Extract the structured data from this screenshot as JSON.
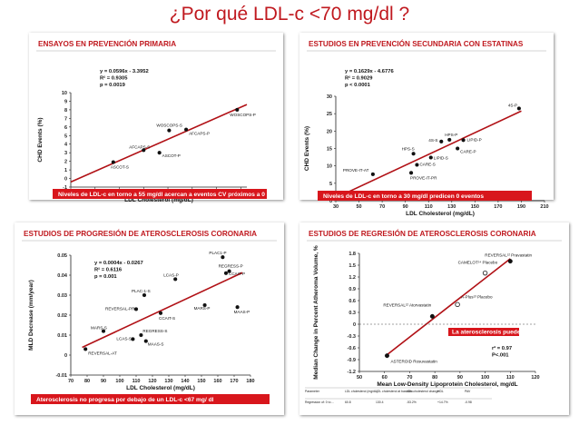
{
  "page_title": "¿Por qué LDL-c <70 mg/dl ?",
  "colors": {
    "title": "#c0191f",
    "trend": "#b11116",
    "banner": "#d8161c",
    "point": "#111111"
  },
  "chart_data": [
    {
      "type": "scatter",
      "title": "ENSAYOS EN PREVENCIÓN PRIMARIA",
      "xlabel": "LDL Cholesterol (mg/dL)",
      "ylabel": "CHD Events (%)",
      "xlim": [
        55,
        200
      ],
      "ylim": [
        -1,
        10
      ],
      "xticks": [
        55,
        75,
        95,
        115,
        135,
        155,
        175,
        195
      ],
      "yticks": [
        -1,
        0,
        1,
        2,
        3,
        4,
        5,
        6,
        7,
        8,
        9,
        10
      ],
      "equation": [
        "y = 0.0596x - 3.3952",
        "R² = 0.9305",
        "p = 0.0019"
      ],
      "trendline": {
        "x": [
          55,
          200
        ]
      },
      "points": [
        {
          "label": "WOSCOPS-P",
          "x": 192,
          "y": 8.0
        },
        {
          "label": "WOSCOPS-S",
          "x": 136,
          "y": 5.6
        },
        {
          "label": "AFCAPS-P",
          "x": 150,
          "y": 5.7
        },
        {
          "label": "AFCAPS-S",
          "x": 115,
          "y": 3.3
        },
        {
          "label": "ASCOT-P",
          "x": 128,
          "y": 3.0
        },
        {
          "label": "ASCOT-S",
          "x": 90,
          "y": 1.9
        }
      ],
      "banner": "Niveles de LDL-c en torno a 55 mg/dl acercan a eventos CV próximos a 0"
    },
    {
      "type": "scatter",
      "title": "ESTUDIOS EN PREVENCIÓN SECUNDARIA CON ESTATINAS",
      "xlabel": "LDL Cholesterol (mg/dL)",
      "ylabel": "CHD Events (%)",
      "xlim": [
        30,
        210
      ],
      "ylim": [
        0,
        30
      ],
      "xticks": [
        30,
        50,
        70,
        90,
        110,
        130,
        150,
        170,
        190,
        210
      ],
      "yticks": [
        0,
        5,
        10,
        15,
        20,
        25,
        30
      ],
      "equation": [
        "y = 0.1629x - 4.6776",
        "R² = 0.9029",
        "p < 0.0001"
      ],
      "trendline": {
        "x": [
          30,
          190
        ]
      },
      "points": [
        {
          "label": "4S-P",
          "x": 188,
          "y": 26.5
        },
        {
          "label": "HPS-P",
          "x": 128,
          "y": 17.5
        },
        {
          "label": "4S-S",
          "x": 121,
          "y": 17.0
        },
        {
          "label": "LIPID-P",
          "x": 140,
          "y": 17.4
        },
        {
          "label": "CARE-P",
          "x": 135,
          "y": 15.0
        },
        {
          "label": "HPS-S",
          "x": 97,
          "y": 13.5
        },
        {
          "label": "LIPID-S",
          "x": 112,
          "y": 12.4
        },
        {
          "label": "CARE-S",
          "x": 100,
          "y": 10.3
        },
        {
          "label": "PROVE-IT-AT",
          "x": 62,
          "y": 7.6
        },
        {
          "label": "PROVE-IT-PR",
          "x": 95,
          "y": 8.0
        }
      ],
      "banner": "Niveles de LDL-c en torno a 30 mg/dl predicen 0 eventos"
    },
    {
      "type": "scatter",
      "title": "ESTUDIOS DE PROGRESIÓN DE ATEROSCLEROSIS CORONARIA",
      "xlabel": "LDL Cholesterol (mg/dL)",
      "ylabel": "MLD Decrease (mm/year)",
      "xlim": [
        70,
        180
      ],
      "ylim": [
        -0.01,
        0.05
      ],
      "xticks": [
        70,
        80,
        90,
        100,
        110,
        120,
        130,
        140,
        150,
        160,
        170,
        180
      ],
      "yticks": [
        -0.01,
        0,
        0.01,
        0.02,
        0.03,
        0.04,
        0.05
      ],
      "equation": [
        "y = 0.0004x - 0.0267",
        "R² = 0.6116",
        "p = 0.001"
      ],
      "trendline": {
        "x": [
          77,
          175
        ]
      },
      "points": [
        {
          "label": "PLAC1-P",
          "x": 163,
          "y": 0.049
        },
        {
          "label": "REGRESS-P",
          "x": 167,
          "y": 0.042
        },
        {
          "label": "CCAIT-P",
          "x": 165,
          "y": 0.041
        },
        {
          "label": "LCAS-P",
          "x": 134,
          "y": 0.038
        },
        {
          "label": "PLAC-1-S",
          "x": 115,
          "y": 0.03
        },
        {
          "label": "REVERSAL-PR",
          "x": 110,
          "y": 0.023
        },
        {
          "label": "MARS-P",
          "x": 152,
          "y": 0.025
        },
        {
          "label": "MAAS-P",
          "x": 172,
          "y": 0.024
        },
        {
          "label": "CCAIT-S",
          "x": 125,
          "y": 0.021
        },
        {
          "label": "MARS-S",
          "x": 90,
          "y": 0.012
        },
        {
          "label": "LCAS-S",
          "x": 108,
          "y": 0.008
        },
        {
          "label": "REGRESS-S",
          "x": 113,
          "y": 0.01
        },
        {
          "label": "MAAS-S",
          "x": 116,
          "y": 0.007
        },
        {
          "label": "REVERSAL-AT",
          "x": 79,
          "y": 0.003
        }
      ],
      "banner": "Aterosclerosis no progresa por debajo de un LDL-c <67 mg/ dl"
    },
    {
      "type": "scatter",
      "title": "ESTUDIOS DE REGRESIÓN DE ATEROSCLEROSIS CORONARIA",
      "xlabel": "Mean Low-Density Lipoprotein Cholesterol, mg/dL",
      "ylabel": "Median Change in Percent Atheroma Volume, %",
      "xlim": [
        50,
        120
      ],
      "ylim": [
        -1.2,
        1.8
      ],
      "xticks": [
        50,
        60,
        70,
        80,
        90,
        100,
        110,
        120
      ],
      "yticks": [
        -1.2,
        -0.9,
        -0.6,
        -0.3,
        0,
        0.3,
        0.6,
        0.9,
        1.2,
        1.5,
        1.8
      ],
      "equation": [
        "r² = 0.97",
        "P<.001"
      ],
      "trendline": {
        "x": [
          61,
          110
        ]
      },
      "points": [
        {
          "label": "REVERSAL¹² Pravastatin",
          "x": 110,
          "y": 1.6,
          "style": "filled"
        },
        {
          "label": "CAMELOT¹⁴ Placebo",
          "x": 100,
          "y": 1.3,
          "style": "open"
        },
        {
          "label": "REVERSAL¹² Atorvastatin",
          "x": 79,
          "y": 0.2,
          "style": "filled"
        },
        {
          "label": "A-Plus¹³ Placebo",
          "x": 89,
          "y": 0.5,
          "style": "open"
        },
        {
          "label": "ASTEROID Rosuvastatin",
          "x": 61,
          "y": -0.8,
          "style": "filled"
        }
      ],
      "inner_banner": "La aterosclerosis puede regresar",
      "table": {
        "headers": [
          "Parameter",
          "LDL cholesterol (mg/dL)",
          "LDL cholesterol at baseline",
          "LDL-cholesterol change",
          "HDL",
          "PAV"
        ],
        "row": [
          "Regression of: 0 to ...",
          "60.8",
          "130.4",
          "-53.2%",
          "+14.7%",
          "-0.98"
        ]
      }
    }
  ]
}
